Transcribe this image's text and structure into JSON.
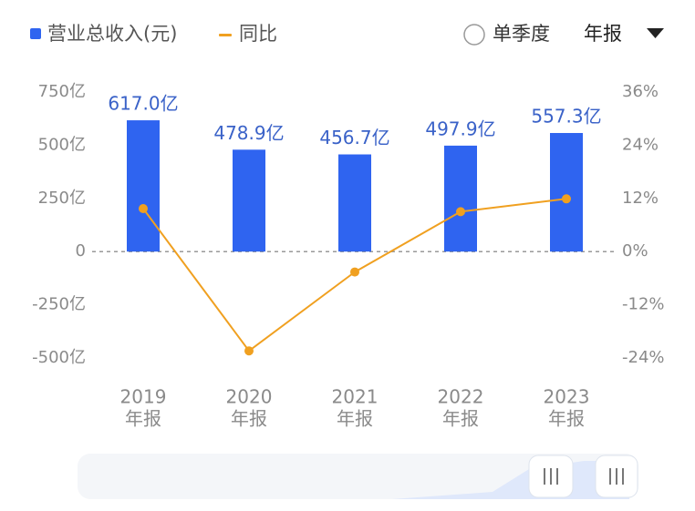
{
  "chart_data": {
    "type": "bar_line",
    "categories": [
      [
        "2019",
        "年报"
      ],
      [
        "2020",
        "年报"
      ],
      [
        "2021",
        "年报"
      ],
      [
        "2022",
        "年报"
      ],
      [
        "2023",
        "年报"
      ]
    ],
    "series": [
      {
        "name": "营业总收入(元)",
        "type": "bar",
        "color": "#2f64f0",
        "values": [
          617.0,
          478.9,
          456.7,
          497.9,
          557.3
        ],
        "value_labels": [
          "617.0亿",
          "478.9亿",
          "456.7亿",
          "497.9亿",
          "557.3亿"
        ]
      },
      {
        "name": "同比",
        "type": "line",
        "axis": "y2",
        "color": "#f0a020",
        "values": [
          9.7,
          -22.4,
          -4.6,
          9.0,
          11.9
        ]
      }
    ],
    "ylim": [
      -500,
      750
    ],
    "yticks": [
      {
        "value": 750,
        "label": "750亿"
      },
      {
        "value": 500,
        "label": "500亿"
      },
      {
        "value": 250,
        "label": "250亿"
      },
      0,
      {
        "value": -250,
        "label": "-250亿"
      },
      {
        "value": -500,
        "label": "-500亿"
      }
    ],
    "y2lim": [
      -24,
      36
    ],
    "y2ticks": [
      {
        "value": 36,
        "label": "36%"
      },
      {
        "value": 24,
        "label": "24%"
      },
      {
        "value": 12,
        "label": "12%"
      },
      {
        "value": 0,
        "label": "0%"
      },
      {
        "value": -12,
        "label": "-12%"
      },
      {
        "value": -24,
        "label": "-24%"
      }
    ],
    "controls": {
      "radio": "单季度",
      "dropdown": "年报"
    }
  }
}
